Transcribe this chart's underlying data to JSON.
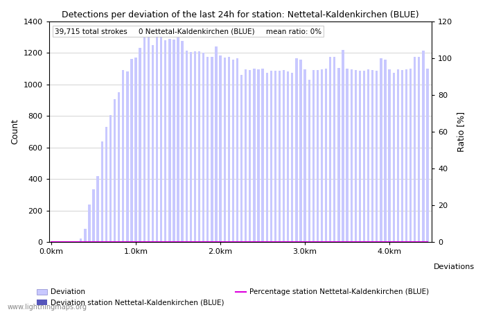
{
  "title": "Detections per deviation of the last 24h for station: Nettetal-Kaldenkirchen (BLUE)",
  "subtitle": "39,715 total strokes     0 Nettetal-Kaldenkirchen (BLUE)     mean ratio: 0%",
  "ylabel_left": "Count",
  "ylabel_right": "Ratio [%]",
  "x_tick_labels": [
    "0.0km",
    "1.0km",
    "2.0km",
    "3.0km",
    "4.0km"
  ],
  "ylim_left": [
    0,
    1400
  ],
  "ylim_right": [
    0,
    120
  ],
  "yticks_left": [
    0,
    200,
    400,
    600,
    800,
    1000,
    1200,
    1400
  ],
  "yticks_right": [
    0,
    20,
    40,
    60,
    80,
    100,
    120
  ],
  "bar_color_light": "#c8c8ff",
  "bar_color_dark": "#5555bb",
  "line_color": "#dd00dd",
  "background_color": "#ffffff",
  "grid_color": "#cccccc",
  "watermark": "www.lightningmaps.org",
  "legend_label_dev": "Deviation",
  "legend_label_station": "Deviation station Nettetal-Kaldenkirchen (BLUE)",
  "legend_label_pct": "Percentage station Nettetal-Kaldenkirchen (BLUE)",
  "deviations_label": "Deviations",
  "n_bars": 90,
  "km_per_bar": 0.05,
  "all_bars": [
    2,
    2,
    2,
    2,
    3,
    5,
    3,
    25,
    85,
    240,
    335,
    420,
    640,
    730,
    805,
    905,
    950,
    1090,
    1080,
    1160,
    1170,
    1230,
    1295,
    1300,
    1250,
    1310,
    1310,
    1280,
    1290,
    1285,
    1295,
    1275,
    1215,
    1205,
    1210,
    1210,
    1200,
    1175,
    1175,
    1240,
    1185,
    1170,
    1175,
    1155,
    1165,
    1060,
    1095,
    1090,
    1100,
    1095,
    1100,
    1075,
    1085,
    1085,
    1085,
    1090,
    1080,
    1075,
    1165,
    1155,
    1095,
    1030,
    1090,
    1090,
    1095,
    1100,
    1175,
    1175,
    1105,
    1220,
    1100,
    1095,
    1090,
    1085,
    1085,
    1095,
    1090,
    1085,
    1165,
    1155,
    1095,
    1075,
    1095,
    1090,
    1095,
    1100,
    1175,
    1175,
    1215,
    1100
  ],
  "station_bars": [
    0,
    0,
    0,
    0,
    0,
    0,
    0,
    0,
    0,
    0,
    0,
    0,
    0,
    0,
    0,
    0,
    0,
    0,
    0,
    0,
    0,
    0,
    0,
    0,
    0,
    0,
    0,
    0,
    0,
    0,
    0,
    0,
    0,
    0,
    0,
    0,
    0,
    0,
    0,
    0,
    0,
    0,
    0,
    0,
    0,
    0,
    0,
    0,
    0,
    0,
    0,
    0,
    0,
    0,
    0,
    0,
    0,
    0,
    0,
    0,
    0,
    0,
    0,
    0,
    0,
    0,
    0,
    0,
    0,
    0,
    0,
    0,
    0,
    0,
    0,
    0,
    0,
    0,
    0,
    0,
    0,
    0,
    0,
    0,
    0,
    0,
    0,
    0,
    0,
    0
  ],
  "percentage": [
    0,
    0,
    0,
    0,
    0,
    0,
    0,
    0,
    0,
    0,
    0,
    0,
    0,
    0,
    0,
    0,
    0,
    0,
    0,
    0,
    0,
    0,
    0,
    0,
    0,
    0,
    0,
    0,
    0,
    0,
    0,
    0,
    0,
    0,
    0,
    0,
    0,
    0,
    0,
    0,
    0,
    0,
    0,
    0,
    0,
    0,
    0,
    0,
    0,
    0,
    0,
    0,
    0,
    0,
    0,
    0,
    0,
    0,
    0,
    0,
    0,
    0,
    0,
    0,
    0,
    0,
    0,
    0,
    0,
    0,
    0,
    0,
    0,
    0,
    0,
    0,
    0,
    0,
    0,
    0,
    0,
    0,
    0,
    0,
    0,
    0,
    0,
    0,
    0,
    0
  ]
}
